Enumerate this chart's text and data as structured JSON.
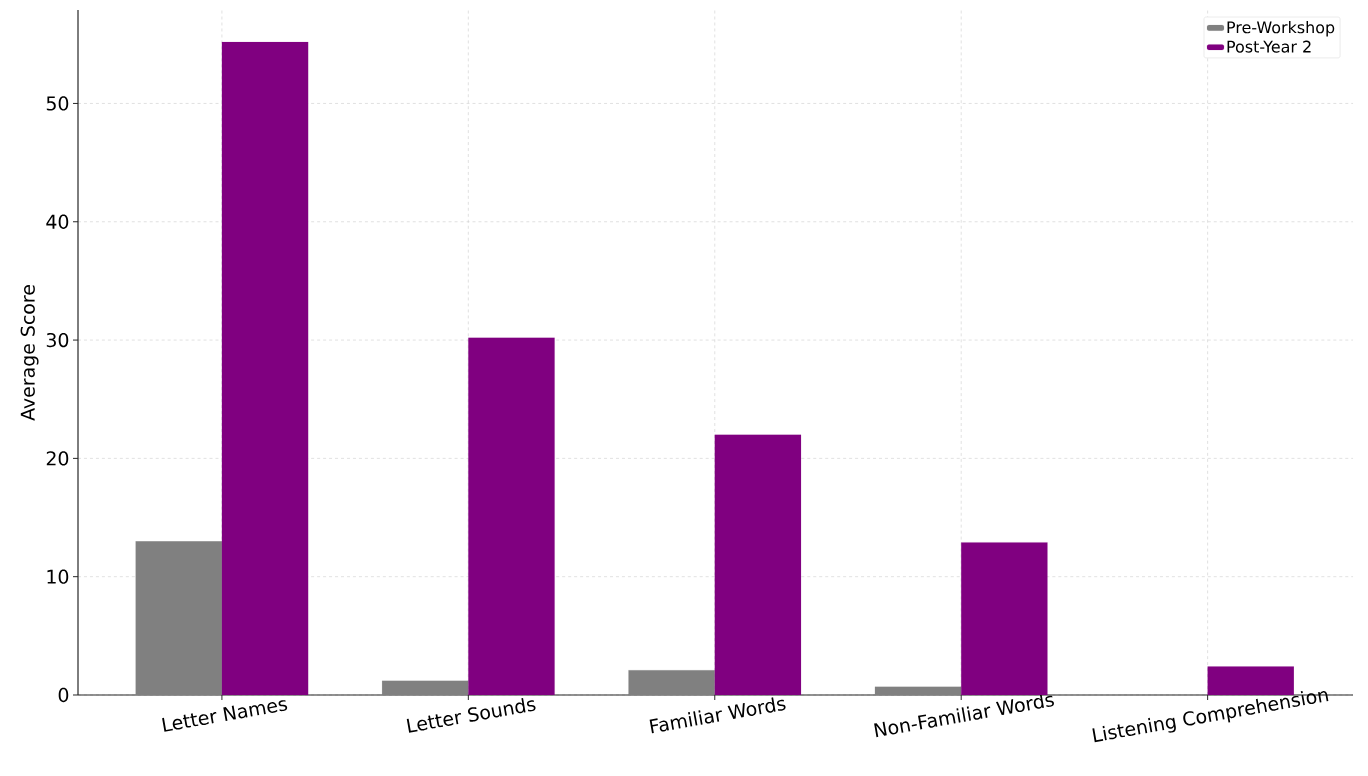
{
  "chart_data": {
    "type": "bar",
    "ylabel": "Average Score",
    "categories": [
      "Letter Names",
      "Letter Sounds",
      "Familiar Words",
      "Non-Familiar Words",
      "Listening Comprehension"
    ],
    "series": [
      {
        "name": "Pre-Workshop",
        "color": "#808080",
        "values": [
          13.0,
          1.2,
          2.1,
          0.7,
          0
        ]
      },
      {
        "name": "Post-Year 2",
        "color": "#800080",
        "values": [
          55.2,
          30.2,
          22.0,
          12.9,
          2.4
        ]
      }
    ],
    "ylim": [
      0,
      57.9
    ],
    "yticks": [
      0,
      10,
      20,
      30,
      40,
      50
    ],
    "grid": true,
    "legend": "top right"
  }
}
